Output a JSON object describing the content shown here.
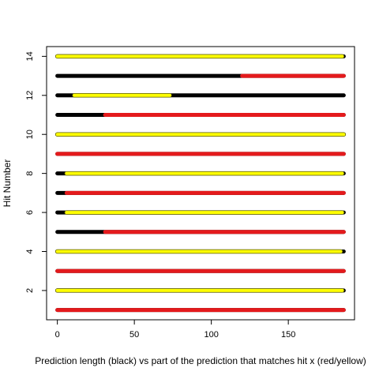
{
  "chart_data": {
    "type": "horizontal-segments",
    "title": "",
    "xlabel": "Prediction length (black) vs part of the prediction that matches hit x (red/yellow)",
    "ylabel": "Hit Number",
    "xlim": [
      -7,
      193
    ],
    "ylim": [
      0.5,
      14.5
    ],
    "xticks": [
      0,
      50,
      100,
      150
    ],
    "yticks": [
      2,
      4,
      6,
      8,
      10,
      12,
      14
    ],
    "colors": {
      "prediction": "#000000",
      "red": "#e41a1c",
      "yellow": "#ffff00"
    },
    "prediction_segments": [
      {
        "y": 1,
        "start": 0,
        "end": 186
      },
      {
        "y": 2,
        "start": 0,
        "end": 186
      },
      {
        "y": 3,
        "start": 0,
        "end": 186
      },
      {
        "y": 4,
        "start": 0,
        "end": 186
      },
      {
        "y": 5,
        "start": 0,
        "end": 186
      },
      {
        "y": 6,
        "start": 0,
        "end": 186
      },
      {
        "y": 7,
        "start": 0,
        "end": 186
      },
      {
        "y": 8,
        "start": 0,
        "end": 186
      },
      {
        "y": 9,
        "start": 0,
        "end": 186
      },
      {
        "y": 10,
        "start": 0,
        "end": 186
      },
      {
        "y": 11,
        "start": 0,
        "end": 186
      },
      {
        "y": 12,
        "start": 0,
        "end": 186
      },
      {
        "y": 13,
        "start": 0,
        "end": 186
      },
      {
        "y": 14,
        "start": 0,
        "end": 186
      }
    ],
    "match_segments": [
      {
        "y": 1,
        "start": 0,
        "end": 186,
        "color": "red"
      },
      {
        "y": 2,
        "start": 0,
        "end": 185,
        "color": "yellow"
      },
      {
        "y": 3,
        "start": 0,
        "end": 186,
        "color": "red"
      },
      {
        "y": 4,
        "start": 0,
        "end": 184,
        "color": "yellow"
      },
      {
        "y": 5,
        "start": 31,
        "end": 186,
        "color": "red"
      },
      {
        "y": 6,
        "start": 6,
        "end": 185,
        "color": "yellow"
      },
      {
        "y": 7,
        "start": 6,
        "end": 186,
        "color": "red"
      },
      {
        "y": 8,
        "start": 6,
        "end": 185,
        "color": "yellow"
      },
      {
        "y": 9,
        "start": 0,
        "end": 186,
        "color": "red"
      },
      {
        "y": 10,
        "start": 0,
        "end": 186,
        "color": "yellow"
      },
      {
        "y": 11,
        "start": 31,
        "end": 186,
        "color": "red"
      },
      {
        "y": 12,
        "start": 11,
        "end": 73,
        "color": "yellow"
      },
      {
        "y": 13,
        "start": 120,
        "end": 186,
        "color": "red"
      },
      {
        "y": 14,
        "start": 0,
        "end": 185,
        "color": "yellow"
      }
    ]
  }
}
